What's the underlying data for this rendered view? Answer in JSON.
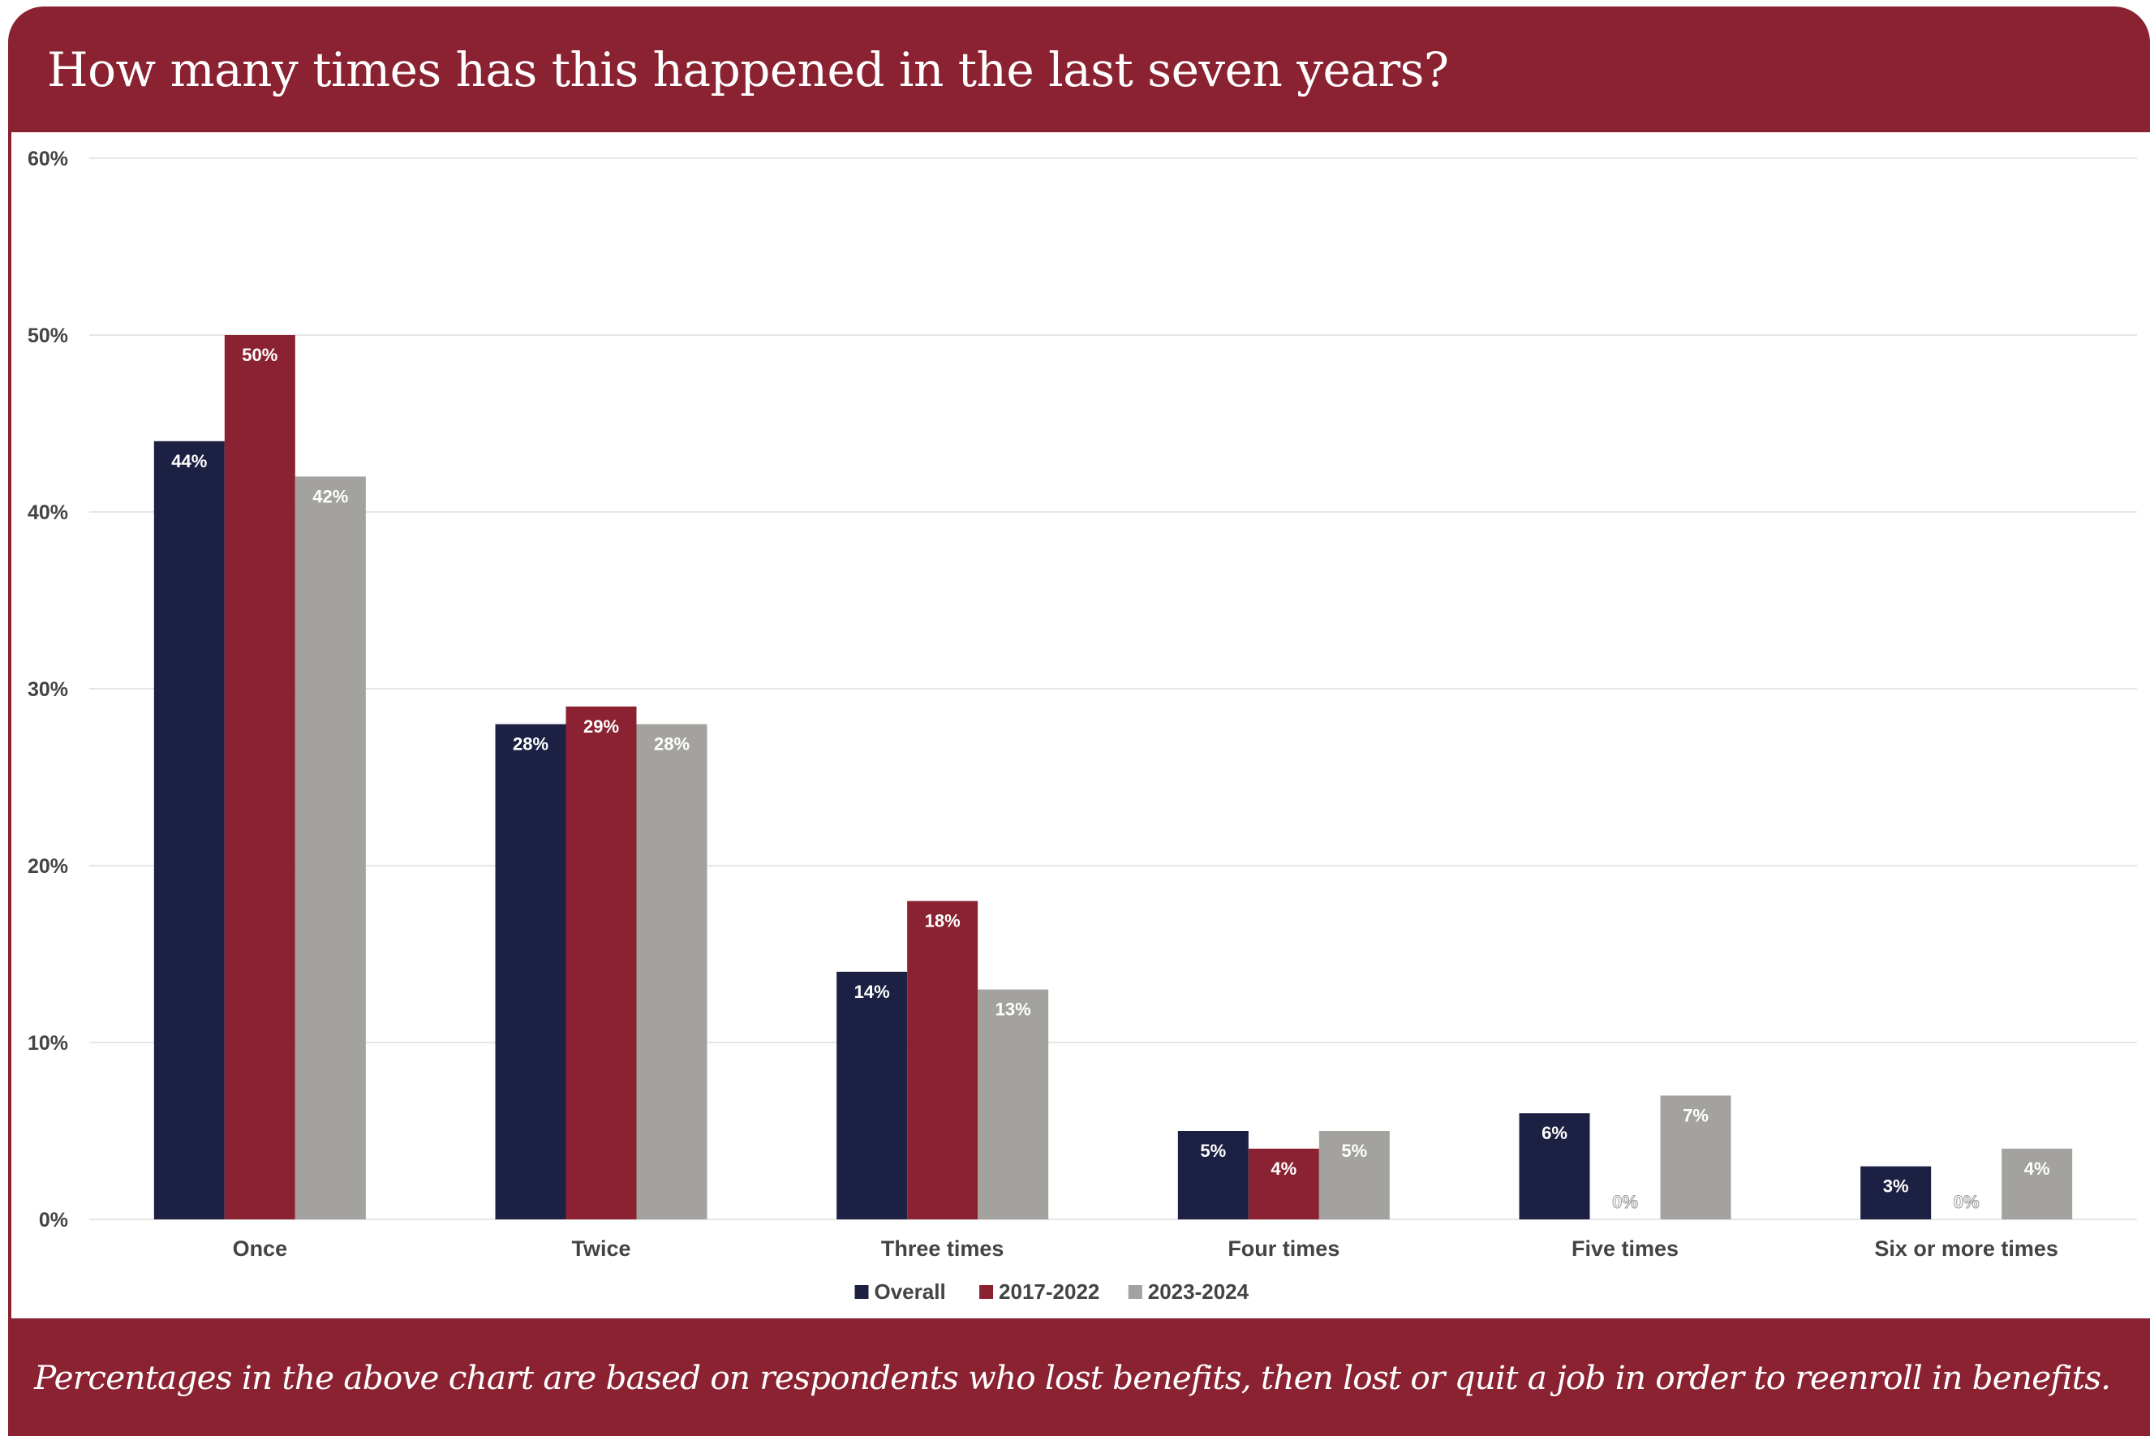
{
  "title": "How many times has this happened in the last seven years?",
  "footnote": "Percentages in the above chart are based on respondents who lost benefits, then lost or quit a job in order to reenroll in benefits.",
  "colors": {
    "frame": "#8b2232",
    "overall": "#1c2042",
    "period_2017_2022": "#8b2232",
    "period_2023_2024": "#a3a29e",
    "grid": "#e6e6e6",
    "axis_text": "#444444"
  },
  "chart_data": {
    "type": "bar",
    "title": "How many times has this happened in the last seven years?",
    "xlabel": "",
    "ylabel": "",
    "ylim": [
      0,
      60
    ],
    "yticks": [
      0,
      10,
      20,
      30,
      40,
      50,
      60
    ],
    "ytick_labels": [
      "0%",
      "10%",
      "20%",
      "30%",
      "40%",
      "50%",
      "60%"
    ],
    "grid": true,
    "legend_position": "bottom-center",
    "categories": [
      "Once",
      "Twice",
      "Three times",
      "Four times",
      "Five times",
      "Six or more times"
    ],
    "series": [
      {
        "name": "Overall",
        "color": "#1c2042",
        "values": [
          44,
          28,
          14,
          5,
          6,
          3
        ],
        "labels": [
          "44%",
          "28%",
          "14%",
          "5%",
          "6%",
          "3%"
        ]
      },
      {
        "name": "2017-2022",
        "color": "#8b2232",
        "values": [
          50,
          29,
          18,
          4,
          0,
          0
        ],
        "labels": [
          "50%",
          "29%",
          "18%",
          "4%",
          "0%",
          "0%"
        ]
      },
      {
        "name": "2023-2024",
        "color": "#a3a29e",
        "values": [
          42,
          28,
          13,
          5,
          7,
          4
        ],
        "labels": [
          "42%",
          "28%",
          "13%",
          "5%",
          "7%",
          "4%"
        ]
      }
    ]
  }
}
